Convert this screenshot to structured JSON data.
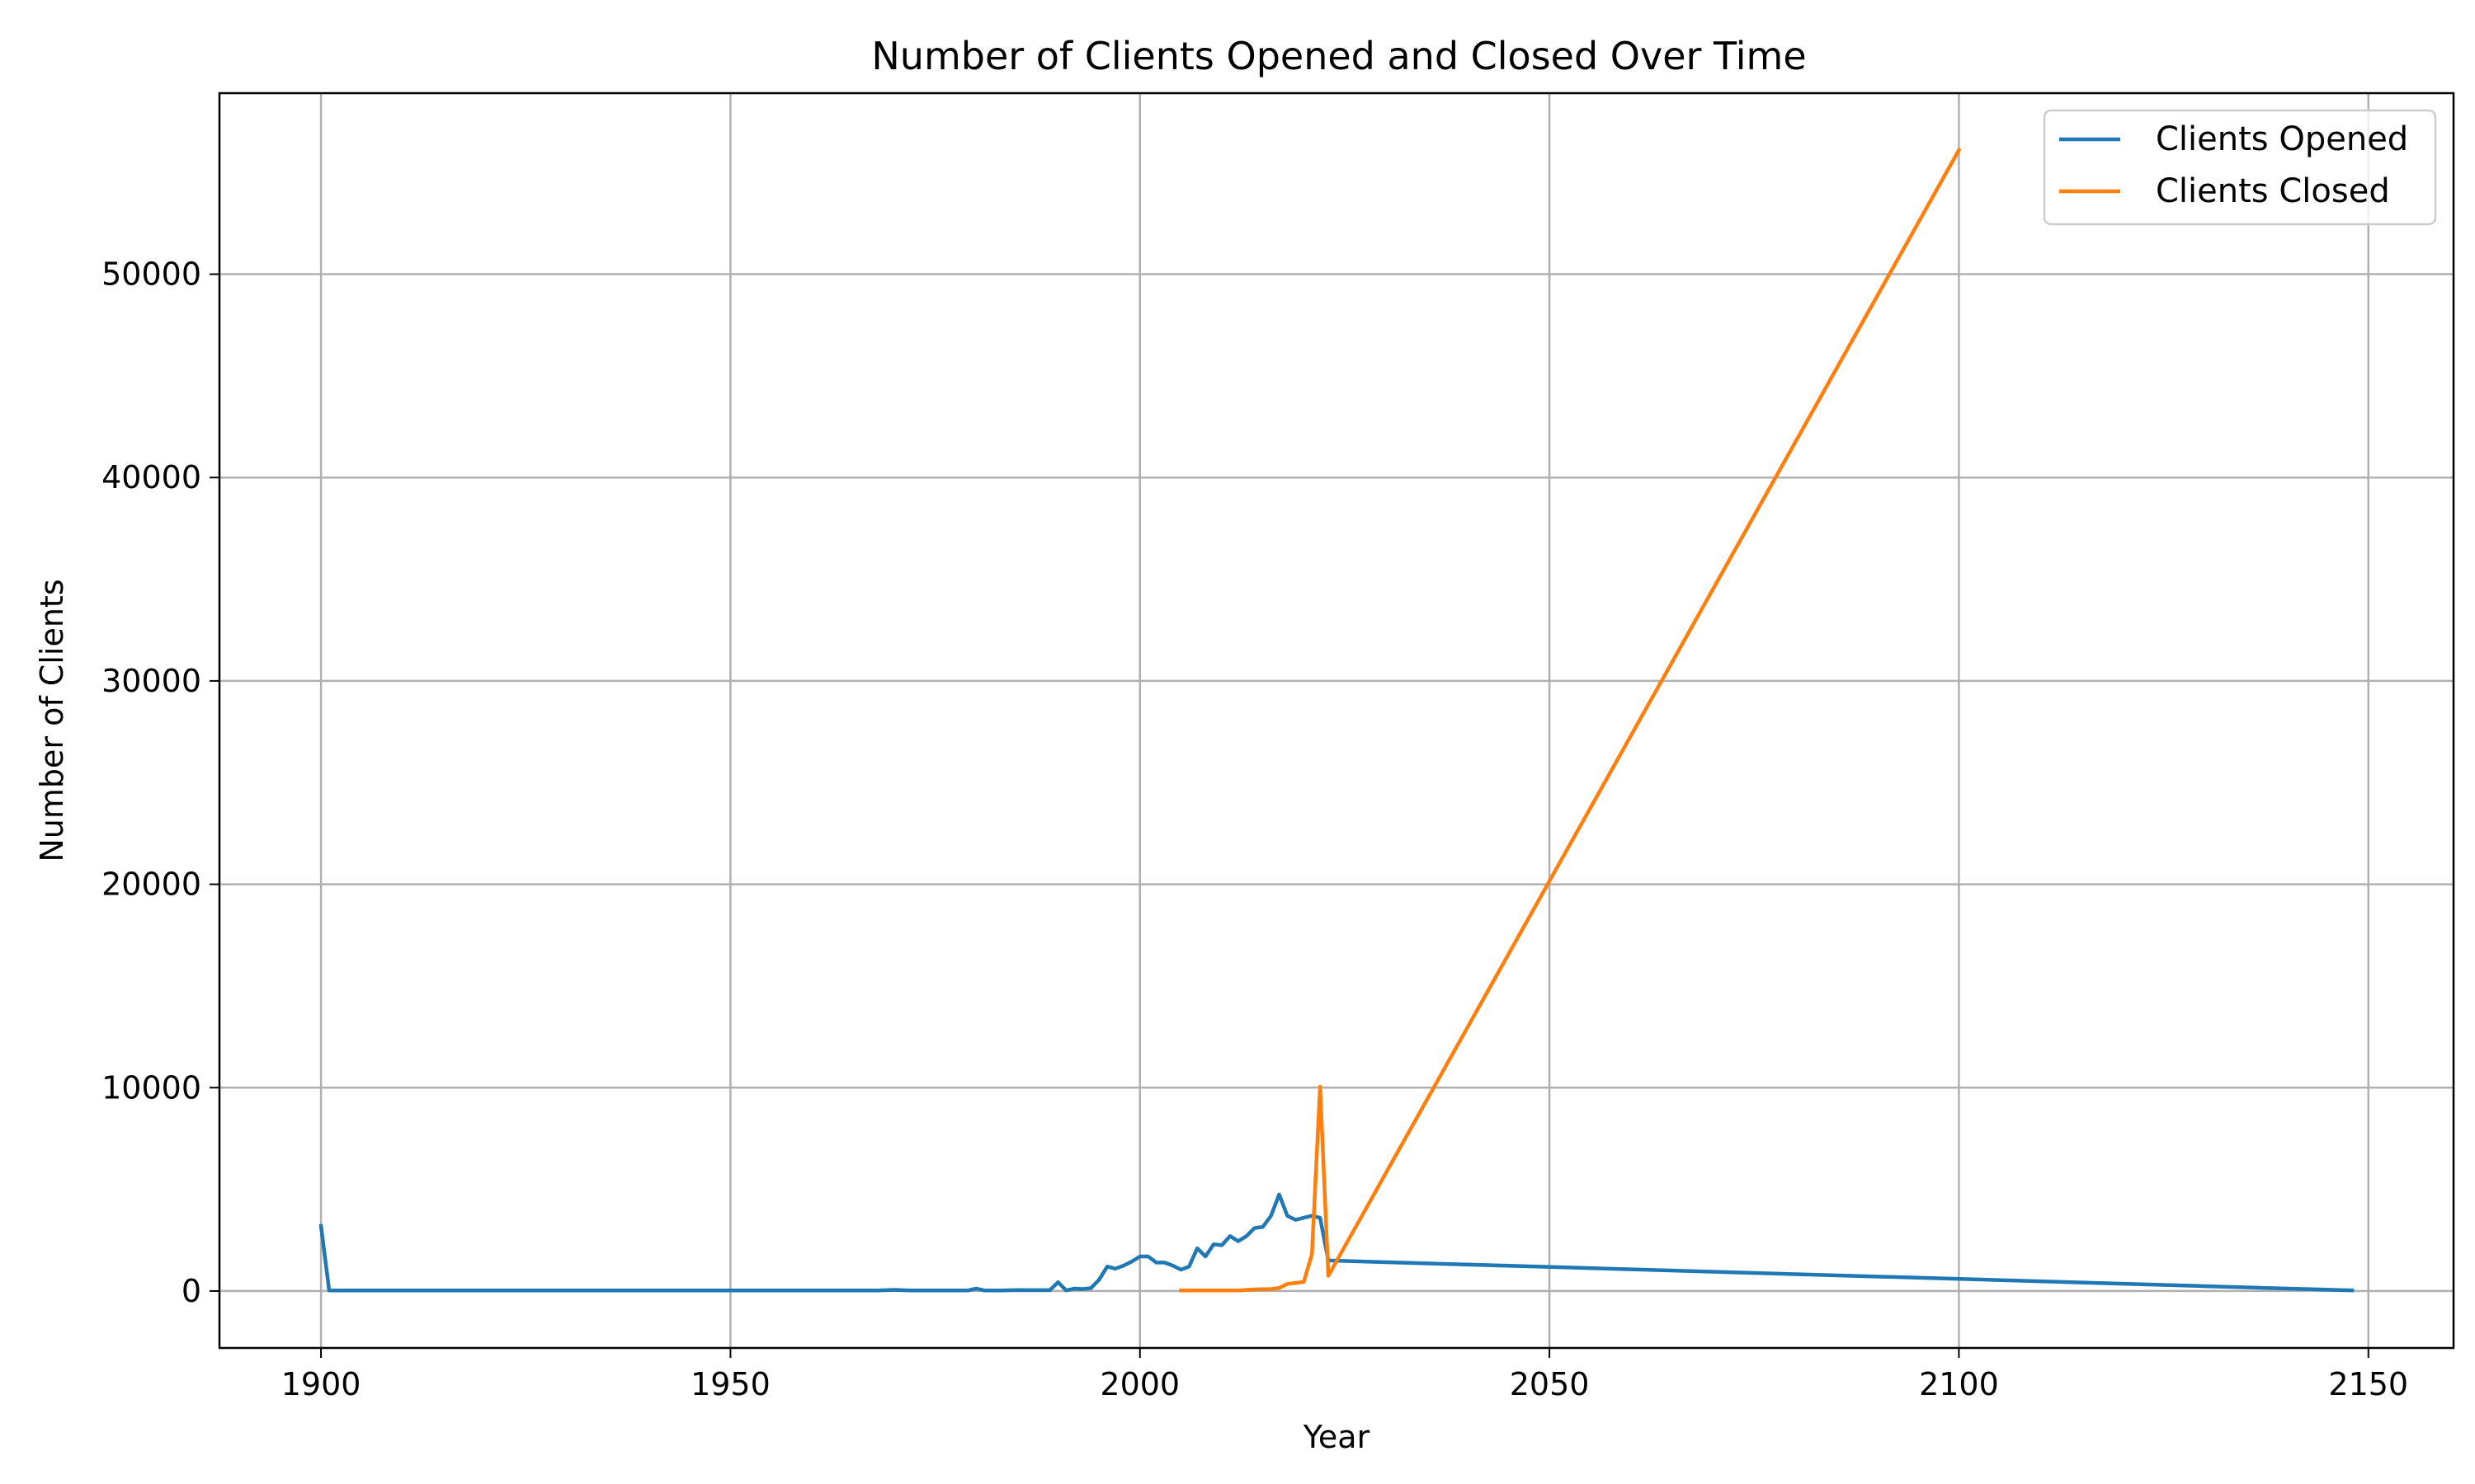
{
  "chart_data": {
    "type": "line",
    "title": "Number of Clients Opened and Closed Over Time",
    "xlabel": "Year",
    "ylabel": "Number of Clients",
    "xlim": [
      1887.6,
      2160.4
    ],
    "ylim": [
      -2800,
      58900
    ],
    "xticks": [
      1900,
      1950,
      2000,
      2050,
      2100,
      2150
    ],
    "yticks": [
      0,
      10000,
      20000,
      30000,
      40000,
      50000
    ],
    "grid": true,
    "legend_position": "upper right",
    "series": [
      {
        "name": "Clients Opened",
        "color": "#1f77b4",
        "x": [
          1900,
          1901,
          1910,
          1920,
          1930,
          1940,
          1950,
          1960,
          1968,
          1970,
          1972,
          1975,
          1979,
          1980,
          1981,
          1983,
          1985,
          1987,
          1989,
          1990,
          1991,
          1992,
          1993,
          1994,
          1995,
          1996,
          1997,
          1998,
          1999,
          2000,
          2001,
          2002,
          2003,
          2004,
          2005,
          2006,
          2007,
          2008,
          2009,
          2010,
          2011,
          2012,
          2013,
          2014,
          2015,
          2016,
          2017,
          2018,
          2019,
          2020,
          2021,
          2022,
          2023,
          2148
        ],
        "y": [
          3200,
          30,
          30,
          30,
          30,
          30,
          30,
          30,
          30,
          60,
          30,
          30,
          30,
          120,
          30,
          30,
          50,
          40,
          40,
          430,
          30,
          120,
          100,
          140,
          550,
          1200,
          1100,
          1250,
          1450,
          1700,
          1700,
          1400,
          1400,
          1250,
          1050,
          1200,
          2100,
          1700,
          2300,
          2250,
          2700,
          2450,
          2700,
          3100,
          3150,
          3700,
          4750,
          3700,
          3500,
          3600,
          3700,
          3600,
          1500,
          30
        ]
      },
      {
        "name": "Clients Closed",
        "color": "#ff7f0e",
        "x": [
          2005,
          2008,
          2010,
          2012,
          2014,
          2016,
          2017,
          2018,
          2019,
          2020,
          2021,
          2022,
          2023,
          2100
        ],
        "y": [
          30,
          30,
          30,
          30,
          80,
          100,
          150,
          350,
          400,
          450,
          1800,
          10050,
          750,
          56100
        ]
      }
    ]
  }
}
